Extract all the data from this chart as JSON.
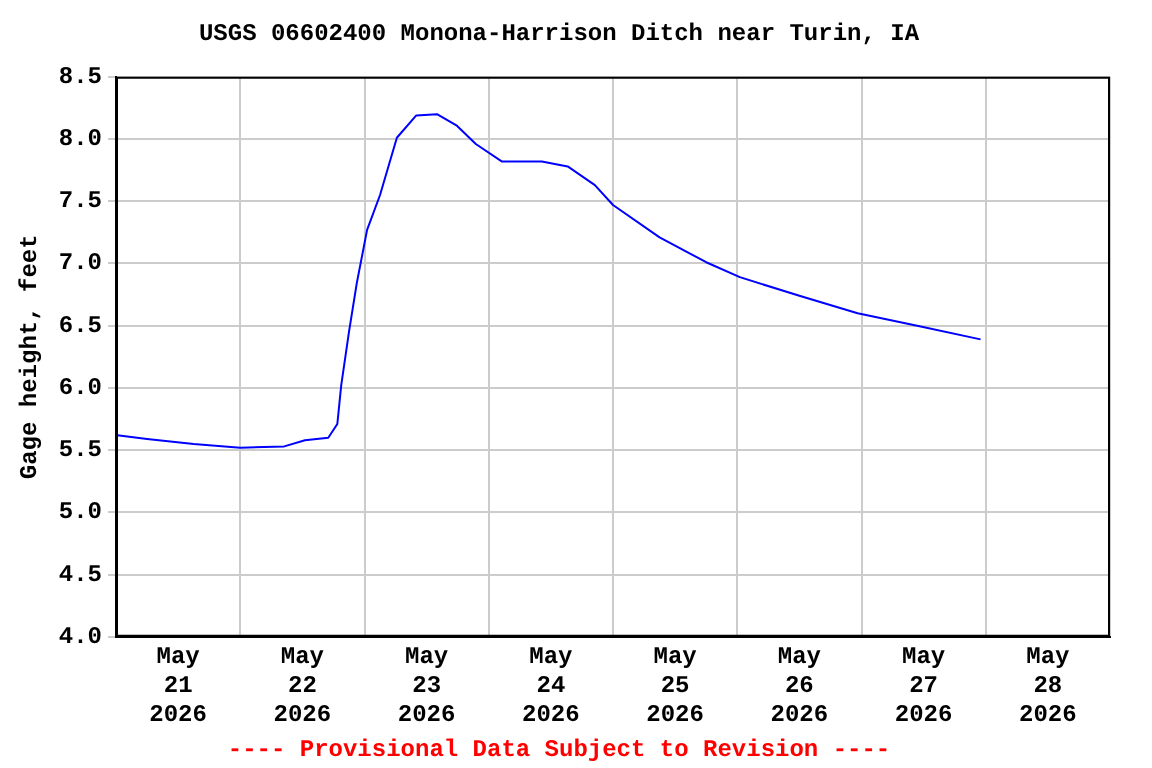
{
  "chart_data": {
    "type": "line",
    "title": "USGS 06602400 Monona-Harrison Ditch near Turin, IA",
    "ylabel": "Gage height, feet",
    "annotations": [
      "---- Provisional Data Subject to Revision ----"
    ],
    "x": [
      "2026-05-21T00:15",
      "2026-05-21T06:00",
      "2026-05-21T15:00",
      "2026-05-22T00:00",
      "2026-05-22T08:30",
      "2026-05-22T12:30",
      "2026-05-22T17:00",
      "2026-05-22T18:45",
      "2026-05-22T19:30",
      "2026-05-22T21:00",
      "2026-05-22T22:30",
      "2026-05-23T00:30",
      "2026-05-23T03:00",
      "2026-05-23T06:15",
      "2026-05-23T10:00",
      "2026-05-23T14:00",
      "2026-05-23T17:45",
      "2026-05-23T21:30",
      "2026-05-24T02:30",
      "2026-05-24T10:15",
      "2026-05-24T15:15",
      "2026-05-24T20:30",
      "2026-05-25T00:00",
      "2026-05-25T09:00",
      "2026-05-25T18:00",
      "2026-05-26T00:30",
      "2026-05-26T12:00",
      "2026-05-26T23:15",
      "2026-05-27T10:45",
      "2026-05-27T23:00"
    ],
    "series": [
      {
        "color": "#0000ff",
        "values": [
          5.62,
          5.59,
          5.55,
          5.52,
          5.53,
          5.58,
          5.6,
          5.71,
          6.02,
          6.45,
          6.84,
          7.27,
          7.55,
          8.01,
          8.19,
          8.2,
          8.11,
          7.96,
          7.82,
          7.82,
          7.78,
          7.63,
          7.47,
          7.21,
          7.01,
          6.89,
          6.74,
          6.6,
          6.5,
          6.39
        ]
      }
    ],
    "xlim": [
      "2026-05-21T00:00",
      "2026-05-29T00:00"
    ],
    "xticks": [
      {
        "value": "2026-05-21T00:00",
        "label": null
      },
      {
        "value": "2026-05-21T12:00",
        "label": "May 21 2026"
      },
      {
        "value": "2026-05-22T00:00",
        "label": null
      },
      {
        "value": "2026-05-22T12:00",
        "label": "May 22 2026"
      },
      {
        "value": "2026-05-23T00:00",
        "label": null
      },
      {
        "value": "2026-05-23T12:00",
        "label": "May 23 2026"
      },
      {
        "value": "2026-05-24T00:00",
        "label": null
      },
      {
        "value": "2026-05-24T12:00",
        "label": "May 24 2026"
      },
      {
        "value": "2026-05-25T00:00",
        "label": null
      },
      {
        "value": "2026-05-25T12:00",
        "label": "May 25 2026"
      },
      {
        "value": "2026-05-26T00:00",
        "label": null
      },
      {
        "value": "2026-05-26T12:00",
        "label": "May 26 2026"
      },
      {
        "value": "2026-05-27T00:00",
        "label": null
      },
      {
        "value": "2026-05-27T12:00",
        "label": "May 27 2026"
      },
      {
        "value": "2026-05-28T00:00",
        "label": null
      },
      {
        "value": "2026-05-28T12:00",
        "label": "May 28 2026"
      },
      {
        "value": "2026-05-29T00:00",
        "label": null
      }
    ],
    "ylim": [
      4,
      8.5
    ],
    "yticks": [
      {
        "value": 4,
        "label": "4.0"
      },
      {
        "value": 4.5,
        "label": "4.5"
      },
      {
        "value": 5,
        "label": "5.0"
      },
      {
        "value": 5.5,
        "label": "5.5"
      },
      {
        "value": 6,
        "label": "6.0"
      },
      {
        "value": 6.5,
        "label": "6.5"
      },
      {
        "value": 7,
        "label": "7.0"
      },
      {
        "value": 7.5,
        "label": "7.5"
      },
      {
        "value": 8,
        "label": "8.0"
      },
      {
        "value": 8.5,
        "label": "8.5"
      }
    ],
    "grid": true,
    "legend": false,
    "marker": "none",
    "line_style": "solid"
  }
}
